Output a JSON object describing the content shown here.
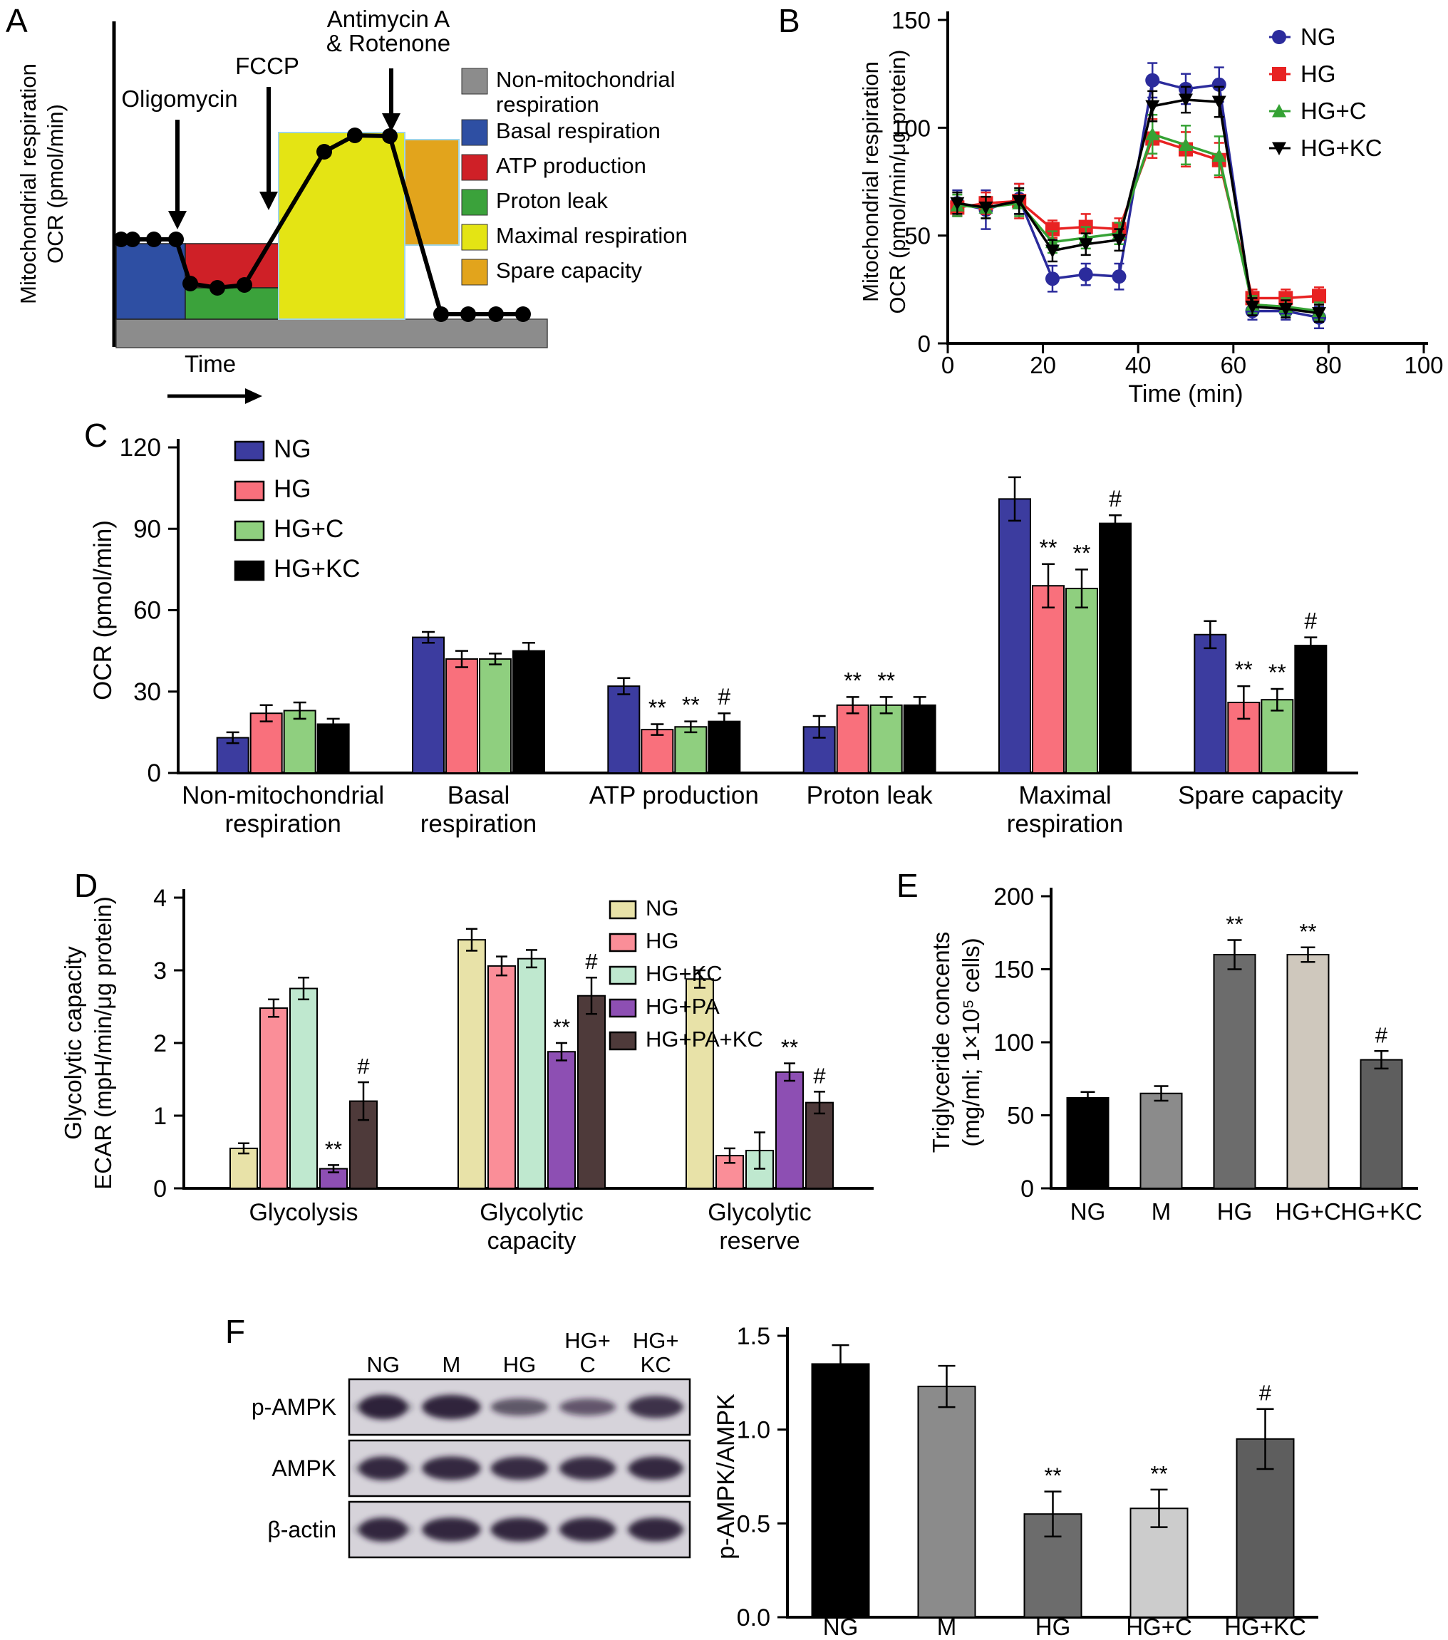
{
  "figure": {
    "background": "#ffffff",
    "panel_labels": {
      "A": "A",
      "B": "B",
      "C": "C",
      "D": "D",
      "E": "E",
      "F": "F"
    }
  },
  "chart_data": [
    {
      "id": "A",
      "type": "area",
      "ylabel_lines": [
        "Mitochondrial respiration",
        "OCR (pmol/min)"
      ],
      "xlabel": "Time",
      "annotations": [
        {
          "label": "Oligomycin"
        },
        {
          "label": "FCCP"
        },
        {
          "label": "Antimycin A\n& Rotenone"
        }
      ],
      "legend": [
        {
          "label": "Non-mitochondrial\nrespiration",
          "color": "#8c8c8c"
        },
        {
          "label": "Basal respiration",
          "color": "#2e4fa3"
        },
        {
          "label": "ATP production",
          "color": "#cf2027"
        },
        {
          "label": "Proton leak",
          "color": "#3ba23b"
        },
        {
          "label": "Maximal respiration",
          "color": "#e4e414"
        },
        {
          "label": "Spare capacity",
          "color": "#e2a41c"
        }
      ]
    },
    {
      "id": "B",
      "type": "line",
      "xlabel": "Time (min)",
      "ylabel_lines": [
        "Mitochondrial respiration",
        "OCR (pmol/min/μg protein)"
      ],
      "xlim": [
        0,
        100
      ],
      "ylim": [
        0,
        150
      ],
      "xticks": [
        0,
        20,
        40,
        60,
        80,
        100
      ],
      "yticks": [
        0,
        50,
        100,
        150
      ],
      "x": [
        2,
        8,
        15,
        22,
        29,
        36,
        43,
        50,
        57,
        64,
        71,
        78
      ],
      "series": [
        {
          "name": "NG",
          "color": "#2b2b9c",
          "marker": "circle",
          "values": [
            65,
            62,
            67,
            30,
            32,
            31,
            122,
            118,
            120,
            15,
            15,
            12
          ],
          "err": [
            6,
            9,
            7,
            6,
            5,
            6,
            8,
            7,
            8,
            4,
            4,
            5
          ]
        },
        {
          "name": "HG",
          "color": "#e82222",
          "marker": "square",
          "values": [
            63,
            65,
            66,
            53,
            54,
            53,
            95,
            90,
            85,
            21,
            21,
            22
          ],
          "err": [
            4,
            5,
            8,
            4,
            6,
            5,
            9,
            8,
            8,
            4,
            4,
            4
          ]
        },
        {
          "name": "HG+C",
          "color": "#35a234",
          "marker": "triangle-up",
          "values": [
            64,
            63,
            65,
            47,
            49,
            51,
            97,
            92,
            87,
            18,
            17,
            15
          ],
          "err": [
            5,
            5,
            6,
            5,
            5,
            5,
            9,
            9,
            9,
            4,
            4,
            4
          ]
        },
        {
          "name": "HG+KC",
          "color": "#000000",
          "marker": "triangle-down",
          "values": [
            65,
            63,
            66,
            43,
            46,
            48,
            110,
            113,
            112,
            17,
            16,
            14
          ],
          "err": [
            5,
            5,
            6,
            5,
            5,
            5,
            7,
            6,
            7,
            4,
            4,
            4
          ]
        }
      ]
    },
    {
      "id": "C",
      "type": "bar",
      "ylabel_lines": [
        "OCR (pmol/min)"
      ],
      "ylim": [
        0,
        120
      ],
      "yticks": [
        0,
        30,
        60,
        90,
        120
      ],
      "categories": [
        "Non-mitochondrial\nrespiration",
        "Basal\nrespiration",
        "ATP production",
        "Proton leak",
        "Maximal\nrespiration",
        "Spare capacity"
      ],
      "series": [
        {
          "name": "NG",
          "color": "#3c3c9f",
          "values": [
            13,
            50,
            32,
            17,
            101,
            51
          ],
          "err": [
            2,
            2,
            3,
            4,
            8,
            5
          ]
        },
        {
          "name": "HG",
          "color": "#f9707c",
          "values": [
            22,
            42,
            16,
            25,
            69,
            26
          ],
          "err": [
            3,
            3,
            2,
            3,
            8,
            6
          ]
        },
        {
          "name": "HG+C",
          "color": "#8fcf7f",
          "values": [
            23,
            42,
            17,
            25,
            68,
            27
          ],
          "err": [
            3,
            2,
            2,
            3,
            7,
            4
          ]
        },
        {
          "name": "HG+KC",
          "color": "#000000",
          "values": [
            18,
            45,
            19,
            25,
            92,
            47
          ],
          "err": [
            2,
            3,
            3,
            3,
            3,
            3
          ]
        }
      ],
      "sig": [
        [
          "",
          "",
          "",
          ""
        ],
        [
          "",
          "",
          "",
          ""
        ],
        [
          "",
          "**",
          "**",
          "#"
        ],
        [
          "",
          "**",
          "**",
          ""
        ],
        [
          "",
          "**",
          "**",
          "#"
        ],
        [
          "",
          "**",
          "**",
          "#"
        ]
      ]
    },
    {
      "id": "D",
      "type": "bar",
      "ylabel_lines": [
        "Glycolytic capacity",
        "ECAR (mpH/min/μg protein)"
      ],
      "ylim": [
        0,
        4
      ],
      "yticks": [
        0,
        1,
        2,
        3,
        4
      ],
      "categories": [
        "Glycolysis",
        "Glycolytic\ncapacity",
        "Glycolytic\nreserve"
      ],
      "series": [
        {
          "name": "NG",
          "color": "#e8e2a8",
          "values": [
            0.55,
            3.42,
            2.88
          ],
          "err": [
            0.07,
            0.15,
            0.12
          ]
        },
        {
          "name": "HG",
          "color": "#fa8e98",
          "values": [
            2.48,
            3.06,
            0.45
          ],
          "err": [
            0.12,
            0.13,
            0.1
          ]
        },
        {
          "name": "HG+KC",
          "color": "#bfe8cf",
          "values": [
            2.75,
            3.16,
            0.52
          ],
          "err": [
            0.15,
            0.12,
            0.25
          ]
        },
        {
          "name": "HG+PA",
          "color": "#8d4fb3",
          "values": [
            0.27,
            1.88,
            1.6
          ],
          "err": [
            0.05,
            0.12,
            0.12
          ]
        },
        {
          "name": "HG+PA+KC",
          "color": "#4e3a3a",
          "values": [
            1.2,
            2.65,
            1.18
          ],
          "err": [
            0.26,
            0.25,
            0.15
          ]
        }
      ],
      "sig": [
        [
          "",
          "",
          "",
          "**",
          "#"
        ],
        [
          "",
          "",
          "",
          "**",
          "#"
        ],
        [
          "",
          "",
          "",
          "**",
          "#"
        ]
      ]
    },
    {
      "id": "E",
      "type": "bar",
      "ylabel_lines": [
        "Triglyceride concents",
        "(mg/ml; 1×10⁵ cells)"
      ],
      "ylim": [
        0,
        200
      ],
      "yticks": [
        0,
        50,
        100,
        150,
        200
      ],
      "categories": [
        "NG",
        "M",
        "HG",
        "HG+C",
        "HG+KC"
      ],
      "series": [
        {
          "name": "Triglyceride",
          "colors": [
            "#000000",
            "#8b8b8b",
            "#6c6c6c",
            "#cfc8bd",
            "#5e5e5e"
          ],
          "values": [
            62,
            65,
            160,
            160,
            88
          ],
          "err": [
            4,
            5,
            10,
            5,
            6
          ]
        }
      ],
      "sig_single": [
        "",
        "",
        "**",
        "**",
        "#"
      ]
    },
    {
      "id": "F-blot",
      "type": "blot",
      "lanes": [
        "NG",
        "M",
        "HG",
        "HG+\nC",
        "HG+\nKC"
      ],
      "rows": [
        {
          "label": "p-AMPK",
          "intensities": [
            0.95,
            0.92,
            0.45,
            0.42,
            0.78
          ]
        },
        {
          "label": "AMPK",
          "intensities": [
            0.88,
            0.88,
            0.85,
            0.85,
            0.88
          ]
        },
        {
          "label": "β-actin",
          "intensities": [
            0.9,
            0.9,
            0.9,
            0.9,
            0.9
          ]
        }
      ]
    },
    {
      "id": "F",
      "type": "bar",
      "ylabel_lines": [
        "p-AMPK/AMPK"
      ],
      "ylim": [
        0,
        1.5
      ],
      "yticks": [
        0,
        0.5,
        1,
        1.5
      ],
      "ytick_labels": [
        "0.0",
        "0.5",
        "1.0",
        "1.5"
      ],
      "categories": [
        "NG",
        "M",
        "HG",
        "HG+C",
        "HG+KC"
      ],
      "series": [
        {
          "name": "p-AMPK/AMPK",
          "colors": [
            "#000000",
            "#8b8b8b",
            "#6c6c6c",
            "#cccccc",
            "#5e5e5e"
          ],
          "values": [
            1.35,
            1.23,
            0.55,
            0.58,
            0.95
          ],
          "err": [
            0.1,
            0.11,
            0.12,
            0.1,
            0.16
          ]
        }
      ],
      "sig_single": [
        "",
        "",
        "**",
        "**",
        "#"
      ]
    }
  ]
}
